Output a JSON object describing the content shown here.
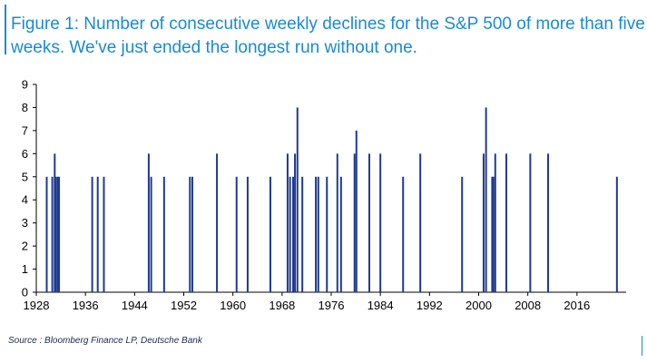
{
  "title": "Figure 1: Number of consecutive weekly declines for the S&P 500 of more than five weeks. We've just ended the longest run without one.",
  "source": "Source : Bloomberg Finance LP, Deutsche Bank",
  "colors": {
    "bar": "#1f3a8f",
    "title": "#1a8ad4",
    "axis": "#000000",
    "frame": "#1a8ad4"
  },
  "chart_data": {
    "type": "bar",
    "title": "Figure 1: Number of consecutive weekly declines for the S&P 500 of more than five weeks. We've just ended the longest run without one.",
    "xlabel": "",
    "ylabel": "",
    "xlim": [
      1928,
      2024
    ],
    "ylim": [
      0,
      9
    ],
    "yticks": [
      0,
      1,
      2,
      3,
      4,
      5,
      6,
      7,
      8,
      9
    ],
    "xticks": [
      1928,
      1936,
      1944,
      1952,
      1960,
      1968,
      1976,
      1984,
      1992,
      2000,
      2008,
      2016
    ],
    "grid": false,
    "legend": "none",
    "x": [
      1929.7,
      1930.6,
      1931.0,
      1931.2,
      1931.5,
      1931.7,
      1937.1,
      1938.0,
      1939.0,
      1946.3,
      1946.7,
      1948.8,
      1953.0,
      1953.4,
      1957.4,
      1960.6,
      1962.4,
      1966.1,
      1968.9,
      1969.3,
      1969.8,
      1970.1,
      1970.5,
      1971.3,
      1973.5,
      1973.9,
      1975.3,
      1977.0,
      1977.6,
      1979.8,
      1980.1,
      1982.2,
      1984.0,
      1987.7,
      1990.5,
      1997.3,
      2000.8,
      2001.2,
      2002.2,
      2002.4,
      2002.7,
      2004.5,
      2008.4,
      2011.3,
      2022.5
    ],
    "values": [
      5,
      5,
      6,
      5,
      5,
      5,
      5,
      5,
      5,
      6,
      5,
      5,
      5,
      5,
      6,
      5,
      5,
      5,
      6,
      5,
      5,
      6,
      8,
      5,
      5,
      5,
      5,
      6,
      5,
      6,
      7,
      6,
      6,
      5,
      6,
      5,
      6,
      8,
      5,
      5,
      6,
      6,
      6,
      6,
      5
    ]
  }
}
